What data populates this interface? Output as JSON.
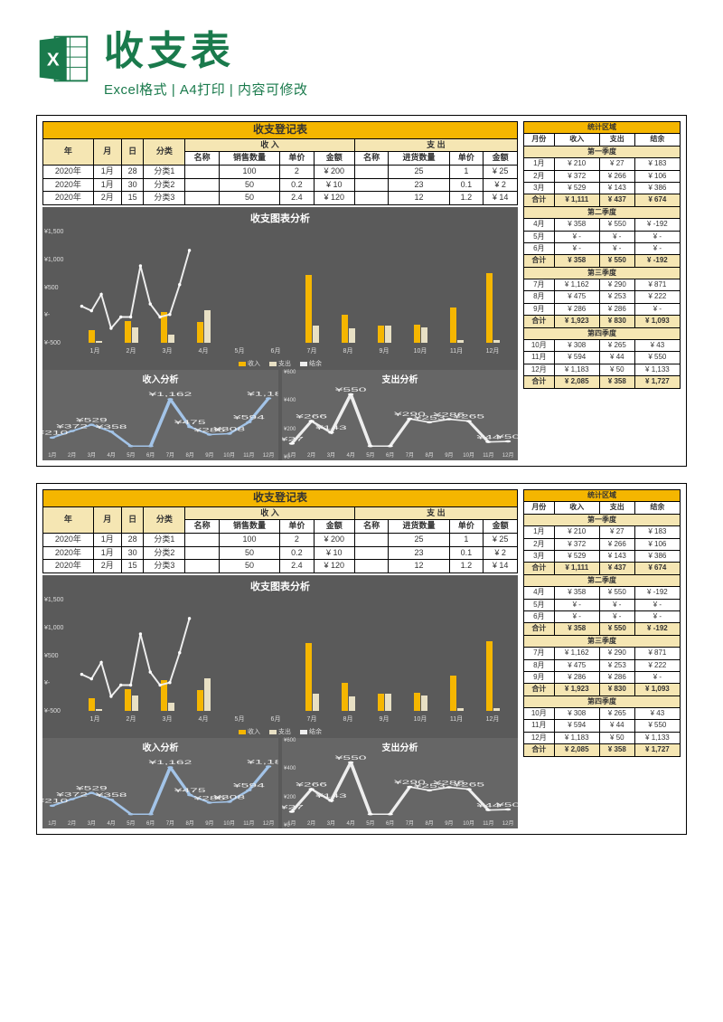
{
  "header": {
    "title": "收支表",
    "subtitle": "Excel格式 | A4打印 | 内容可修改"
  },
  "colors": {
    "accent": "#f5b600",
    "accent_light": "#f5e6b3",
    "chart_bg": "#5a5a5a",
    "chart_bg2": "#666666",
    "bar_income": "#f5b600",
    "bar_expense": "#e8e0c4",
    "line_white": "#eeeeee",
    "line_blue": "#a3c4e8",
    "excel_green": "#1a7a4c"
  },
  "register": {
    "title": "收支登记表",
    "group_income": "收 入",
    "group_expense": "支 出",
    "cols": [
      "年",
      "月",
      "日",
      "分类",
      "名称",
      "销售数量",
      "单价",
      "金额",
      "名称",
      "进货数量",
      "单价",
      "金额"
    ],
    "rows": [
      [
        "2020年",
        "1月",
        "28",
        "分类1",
        "",
        "100",
        "2",
        "¥    200",
        "",
        "25",
        "1",
        "¥    25"
      ],
      [
        "2020年",
        "1月",
        "30",
        "分类2",
        "",
        "50",
        "0.2",
        "¥     10",
        "",
        "23",
        "0.1",
        "¥      2"
      ],
      [
        "2020年",
        "2月",
        "15",
        "分类3",
        "",
        "50",
        "2.4",
        "¥    120",
        "",
        "12",
        "1.2",
        "¥    14"
      ]
    ]
  },
  "chart": {
    "title": "收支图表分析",
    "ylabels": [
      "¥1,500",
      "¥1,000",
      "¥500",
      "¥-",
      "¥-500"
    ],
    "ylim": [
      -500,
      1500
    ],
    "months": [
      "1月",
      "2月",
      "3月",
      "4月",
      "5月",
      "6月",
      "7月",
      "8月",
      "9月",
      "10月",
      "11月",
      "12月"
    ],
    "income": [
      210,
      372,
      529,
      358,
      0,
      0,
      1162,
      475,
      286,
      308,
      594,
      1183
    ],
    "expense": [
      27,
      266,
      143,
      550,
      0,
      0,
      290,
      253,
      286,
      265,
      44,
      50
    ],
    "balance": [
      183,
      106,
      386,
      -192,
      0,
      0,
      871,
      222,
      0,
      43,
      550,
      1133
    ],
    "legend": {
      "income": "收入",
      "expense": "支出",
      "balance": "结余"
    }
  },
  "mini_income": {
    "title": "收入分析",
    "values": [
      210,
      372,
      529,
      358,
      0,
      0,
      1162,
      475,
      286,
      308,
      594,
      1183
    ],
    "labels": [
      "¥210",
      "¥372",
      "¥529",
      "¥358",
      "¥-",
      "¥-",
      "¥1,162",
      "¥475",
      "¥286",
      "¥308",
      "¥594",
      "¥1,183"
    ],
    "max": 1400
  },
  "mini_expense": {
    "title": "支出分析",
    "ylabels": [
      "¥600",
      "¥400",
      "¥200",
      "¥0"
    ],
    "values": [
      27,
      266,
      143,
      550,
      0,
      0,
      290,
      253,
      286,
      265,
      44,
      50
    ],
    "labels": [
      "¥27",
      "¥266",
      "¥143",
      "¥550",
      "¥-",
      "¥-",
      "¥290",
      "¥253",
      "¥286",
      "¥265",
      "¥44",
      "¥50"
    ],
    "max": 600
  },
  "stats": {
    "title": "统计区域",
    "cols": [
      "月份",
      "收入",
      "支出",
      "结余"
    ],
    "quarters": [
      {
        "name": "第一季度",
        "rows": [
          [
            "1月",
            "¥  210",
            "¥   27",
            "¥  183"
          ],
          [
            "2月",
            "¥  372",
            "¥  266",
            "¥  106"
          ],
          [
            "3月",
            "¥  529",
            "¥  143",
            "¥  386"
          ]
        ],
        "sum": [
          "合计",
          "¥ 1,111",
          "¥  437",
          "¥  674"
        ]
      },
      {
        "name": "第二季度",
        "rows": [
          [
            "4月",
            "¥  358",
            "¥  550",
            "¥ -192"
          ],
          [
            "5月",
            "¥    -",
            "¥    -",
            "¥    -"
          ],
          [
            "6月",
            "¥    -",
            "¥    -",
            "¥    -"
          ]
        ],
        "sum": [
          "合计",
          "¥  358",
          "¥  550",
          "¥ -192"
        ]
      },
      {
        "name": "第三季度",
        "rows": [
          [
            "7月",
            "¥ 1,162",
            "¥  290",
            "¥  871"
          ],
          [
            "8月",
            "¥  475",
            "¥  253",
            "¥  222"
          ],
          [
            "9月",
            "¥  286",
            "¥  286",
            "¥    -"
          ]
        ],
        "sum": [
          "合计",
          "¥ 1,923",
          "¥  830",
          "¥ 1,093"
        ]
      },
      {
        "name": "第四季度",
        "rows": [
          [
            "10月",
            "¥  308",
            "¥  265",
            "¥   43"
          ],
          [
            "11月",
            "¥  594",
            "¥   44",
            "¥  550"
          ],
          [
            "12月",
            "¥ 1,183",
            "¥   50",
            "¥ 1,133"
          ]
        ],
        "sum": [
          "合计",
          "¥ 2,085",
          "¥  358",
          "¥ 1,727"
        ]
      }
    ]
  }
}
